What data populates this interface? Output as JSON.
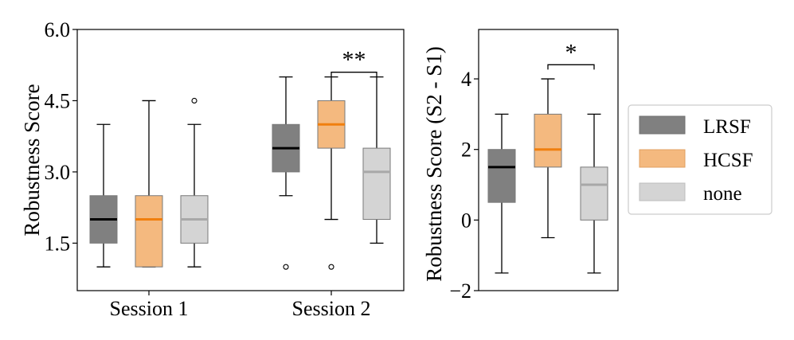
{
  "colors": {
    "LRSF": {
      "fill": "#808080",
      "median": "#000000"
    },
    "HCSF": {
      "fill": "#f4b97f",
      "median": "#f07f0e"
    },
    "none": {
      "fill": "#d4d4d4",
      "median": "#a8a8a8"
    }
  },
  "chart_data": [
    {
      "type": "box",
      "ylabel": "Robustness Score",
      "ylim": [
        0.5,
        6.0
      ],
      "yticks": [
        "1.5",
        "3.0",
        "4.5",
        "6.0"
      ],
      "ytick_values": [
        1.5,
        3.0,
        4.5,
        6.0
      ],
      "categories": [
        "Session 1",
        "Session 2"
      ],
      "series": [
        {
          "name": "LRSF",
          "boxes": [
            {
              "q1": 1.5,
              "median": 2.0,
              "q3": 2.5,
              "whisker_low": 1.0,
              "whisker_high": 4.0,
              "outliers": []
            },
            {
              "q1": 3.0,
              "median": 3.5,
              "q3": 4.0,
              "whisker_low": 2.5,
              "whisker_high": 5.0,
              "outliers": [
                1.0
              ]
            }
          ]
        },
        {
          "name": "HCSF",
          "boxes": [
            {
              "q1": 1.0,
              "median": 2.0,
              "q3": 2.5,
              "whisker_low": 1.0,
              "whisker_high": 4.5,
              "outliers": []
            },
            {
              "q1": 3.5,
              "median": 4.0,
              "q3": 4.5,
              "whisker_low": 2.0,
              "whisker_high": 5.0,
              "outliers": [
                1.0
              ]
            }
          ]
        },
        {
          "name": "none",
          "boxes": [
            {
              "q1": 1.5,
              "median": 2.0,
              "q3": 2.5,
              "whisker_low": 1.0,
              "whisker_high": 4.0,
              "outliers": [
                4.5
              ]
            },
            {
              "q1": 2.0,
              "median": 3.0,
              "q3": 3.5,
              "whisker_low": 1.5,
              "whisker_high": 5.0,
              "outliers": []
            }
          ]
        }
      ],
      "annotations": [
        {
          "text": "**",
          "between": [
            "HCSF",
            "none"
          ],
          "category": "Session 2",
          "y": 5.1
        }
      ]
    },
    {
      "type": "box",
      "ylabel": "Robustness Score (S2 - S1)",
      "ylim": [
        -2.0,
        5.4
      ],
      "yticks": [
        "−2",
        "0",
        "2",
        "4"
      ],
      "ytick_values": [
        -2,
        0,
        2,
        4
      ],
      "categories": [
        "LRSF",
        "HCSF",
        "none"
      ],
      "series": [
        {
          "name": "LRSF",
          "boxes": [
            {
              "q1": 0.5,
              "median": 1.5,
              "q3": 2.0,
              "whisker_low": -1.5,
              "whisker_high": 3.0,
              "outliers": []
            }
          ]
        },
        {
          "name": "HCSF",
          "boxes": [
            {
              "q1": 1.5,
              "median": 2.0,
              "q3": 3.0,
              "whisker_low": -0.5,
              "whisker_high": 4.0,
              "outliers": []
            }
          ]
        },
        {
          "name": "none",
          "boxes": [
            {
              "q1": 0.0,
              "median": 1.0,
              "q3": 1.5,
              "whisker_low": -1.5,
              "whisker_high": 3.0,
              "outliers": []
            }
          ]
        }
      ],
      "annotations": [
        {
          "text": "*",
          "between": [
            "HCSF",
            "none"
          ],
          "y": 4.4
        }
      ]
    }
  ],
  "legend": {
    "placement": "right",
    "entries": [
      "LRSF",
      "HCSF",
      "none"
    ]
  }
}
